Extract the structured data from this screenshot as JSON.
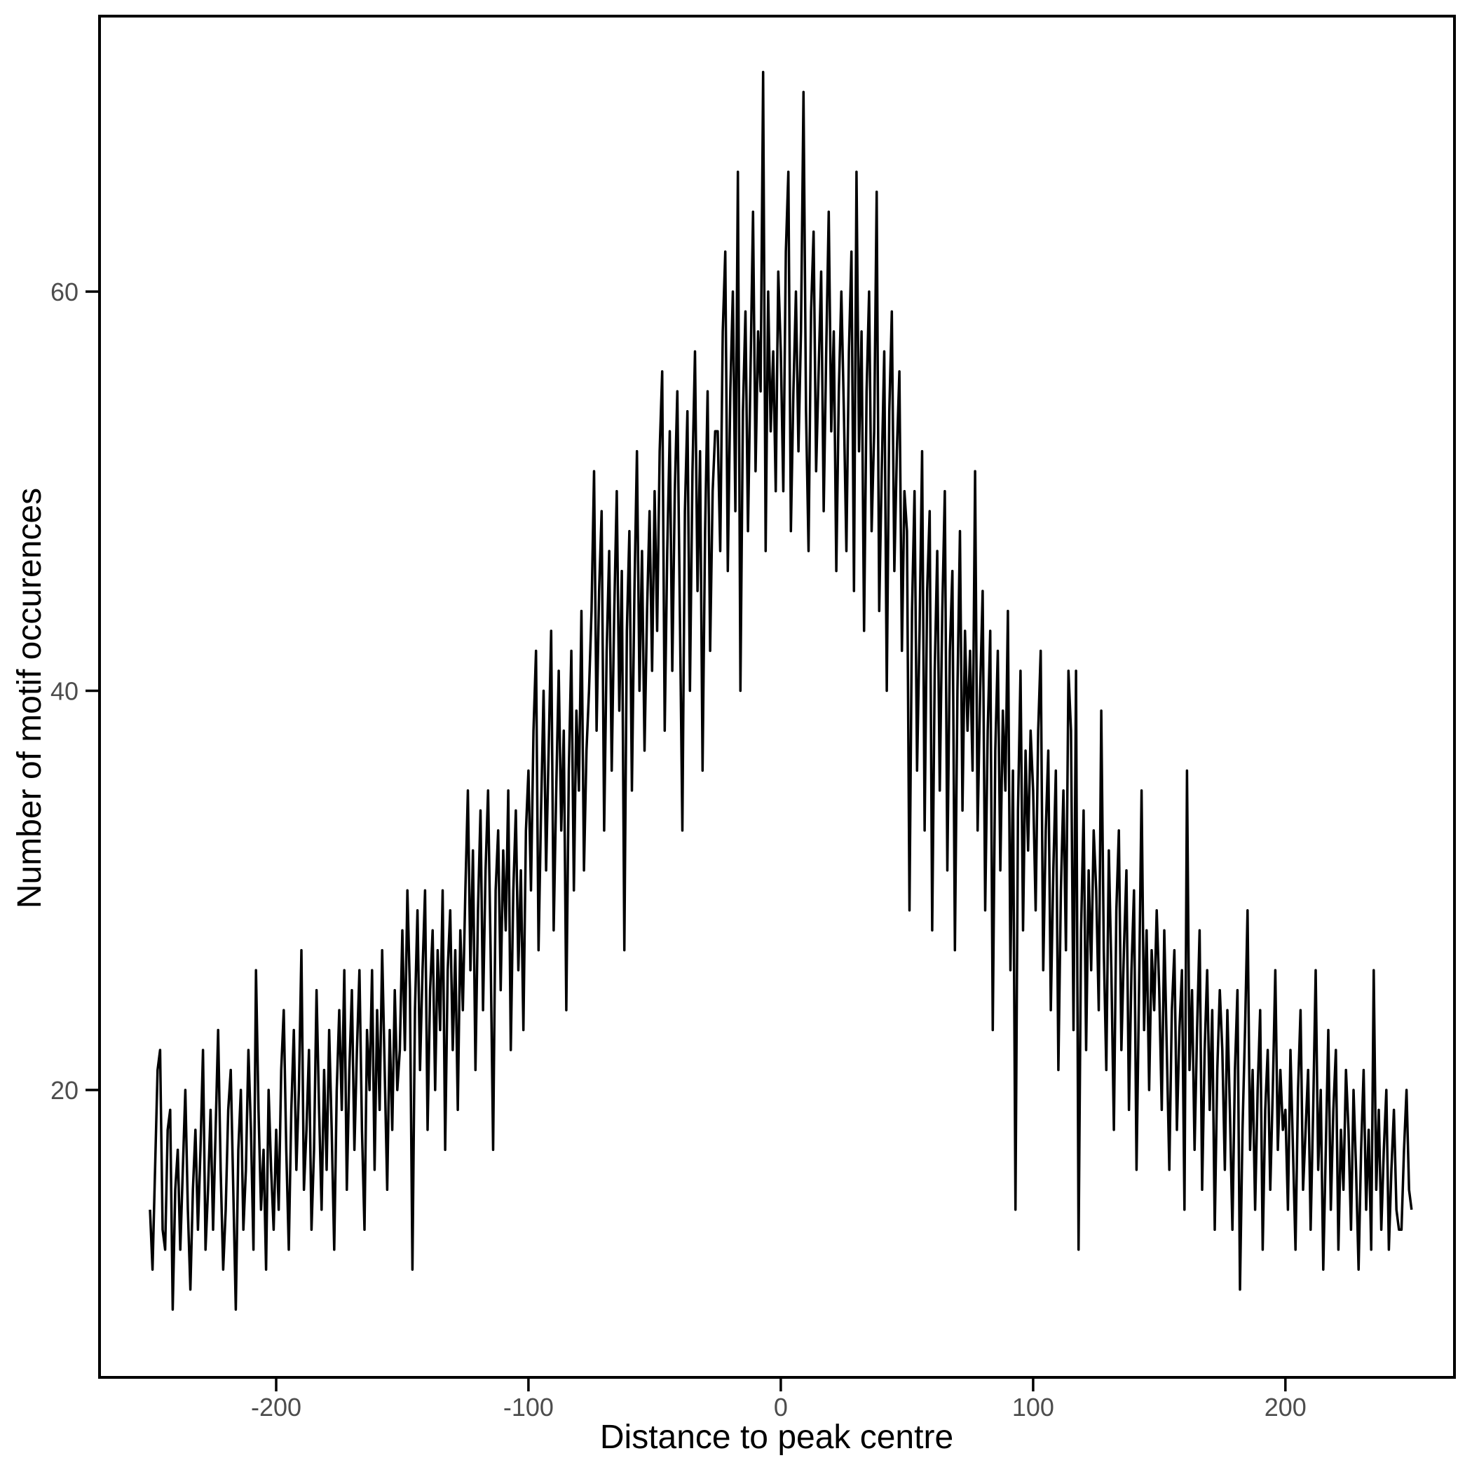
{
  "chart_data": {
    "type": "line",
    "title": "",
    "xlabel": "Distance to peak centre",
    "ylabel": "Number of motif occurences",
    "x_ticks": [
      -200,
      -100,
      0,
      100,
      200
    ],
    "y_ticks": [
      20,
      40,
      60
    ],
    "xlim": [
      -270,
      267
    ],
    "ylim": [
      5.6,
      73.8
    ],
    "grid": false,
    "legend": false,
    "background": "#ffffff",
    "line_color": "#000000",
    "axis_color": "#000000",
    "tick_label_color": "#4d4d4d",
    "axis_title_color": "#000000",
    "x_start": -250,
    "x_step": 1,
    "values": [
      14,
      11,
      16,
      21,
      22,
      13,
      12,
      18,
      19,
      9,
      15,
      17,
      12,
      16,
      20,
      14,
      10,
      15,
      18,
      13,
      17,
      22,
      12,
      15,
      19,
      13,
      18,
      23,
      16,
      11,
      14,
      19,
      21,
      15,
      9,
      17,
      20,
      13,
      16,
      22,
      18,
      12,
      26,
      19,
      14,
      17,
      11,
      20,
      16,
      13,
      18,
      14,
      21,
      24,
      17,
      12,
      19,
      23,
      16,
      20,
      27,
      15,
      18,
      22,
      13,
      17,
      25,
      19,
      14,
      21,
      16,
      23,
      18,
      12,
      20,
      24,
      19,
      26,
      15,
      21,
      25,
      17,
      22,
      26,
      18,
      13,
      23,
      20,
      26,
      16,
      24,
      19,
      27,
      21,
      15,
      23,
      18,
      25,
      20,
      22,
      28,
      22,
      30,
      25,
      11,
      24,
      29,
      21,
      26,
      30,
      18,
      25,
      28,
      20,
      27,
      23,
      30,
      17,
      26,
      29,
      22,
      27,
      19,
      28,
      24,
      30,
      35,
      26,
      32,
      21,
      29,
      34,
      24,
      31,
      35,
      27,
      17,
      30,
      33,
      25,
      32,
      28,
      35,
      22,
      30,
      34,
      26,
      31,
      23,
      33,
      36,
      30,
      38,
      42,
      27,
      34,
      40,
      31,
      37,
      43,
      28,
      35,
      41,
      33,
      38,
      24,
      36,
      42,
      30,
      39,
      35,
      44,
      31,
      37,
      40,
      44,
      51,
      38,
      45,
      49,
      33,
      42,
      47,
      36,
      44,
      50,
      39,
      46,
      27,
      43,
      48,
      35,
      45,
      52,
      40,
      47,
      37,
      44,
      49,
      41,
      50,
      43,
      52,
      56,
      38,
      47,
      53,
      41,
      50,
      55,
      44,
      33,
      49,
      54,
      40,
      51,
      57,
      45,
      52,
      36,
      48,
      55,
      42,
      50,
      53,
      53,
      47,
      58,
      62,
      46,
      55,
      60,
      49,
      66,
      40,
      54,
      59,
      48,
      56,
      64,
      51,
      58,
      55,
      71,
      47,
      60,
      53,
      57,
      50,
      61,
      57,
      50,
      62,
      66,
      48,
      55,
      60,
      52,
      58,
      70,
      54,
      47,
      59,
      63,
      51,
      56,
      61,
      49,
      57,
      64,
      53,
      58,
      46,
      55,
      60,
      54,
      47,
      57,
      62,
      45,
      66,
      52,
      58,
      43,
      55,
      60,
      48,
      53,
      65,
      44,
      51,
      57,
      40,
      54,
      59,
      46,
      52,
      56,
      42,
      50,
      48,
      29,
      44,
      50,
      36,
      43,
      52,
      33,
      45,
      49,
      28,
      41,
      47,
      35,
      44,
      50,
      31,
      42,
      46,
      27,
      40,
      48,
      34,
      43,
      38,
      42,
      36,
      51,
      33,
      40,
      45,
      29,
      38,
      43,
      23,
      37,
      42,
      31,
      39,
      35,
      44,
      26,
      36,
      14,
      34,
      41,
      28,
      37,
      32,
      38,
      35,
      29,
      38,
      42,
      26,
      33,
      37,
      24,
      31,
      36,
      21,
      30,
      35,
      27,
      41,
      38,
      23,
      41,
      12,
      28,
      34,
      22,
      31,
      26,
      33,
      30,
      24,
      39,
      27,
      21,
      32,
      26,
      18,
      29,
      33,
      22,
      27,
      31,
      19,
      26,
      30,
      16,
      25,
      35,
      23,
      28,
      20,
      27,
      24,
      29,
      25,
      19,
      28,
      22,
      16,
      24,
      27,
      18,
      23,
      26,
      14,
      36,
      21,
      25,
      17,
      23,
      28,
      15,
      22,
      26,
      19,
      24,
      13,
      21,
      25,
      22,
      16,
      24,
      19,
      13,
      21,
      25,
      10,
      18,
      23,
      29,
      17,
      21,
      14,
      20,
      24,
      12,
      19,
      22,
      15,
      20,
      26,
      17,
      21,
      18,
      19,
      14,
      22,
      17,
      12,
      20,
      24,
      15,
      18,
      21,
      13,
      19,
      26,
      16,
      20,
      11,
      17,
      23,
      14,
      19,
      22,
      12,
      18,
      15,
      21,
      18,
      13,
      20,
      16,
      11,
      17,
      21,
      14,
      18,
      12,
      26,
      15,
      19,
      13,
      17,
      20,
      12,
      16,
      19,
      14,
      13,
      13,
      17,
      20,
      15,
      14
    ]
  }
}
